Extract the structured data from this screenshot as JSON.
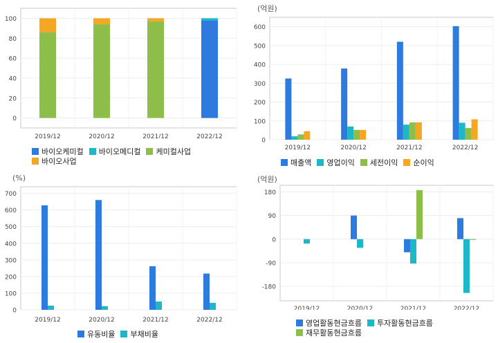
{
  "chart_data": [
    {
      "type": "bar",
      "stacked": true,
      "unit": "",
      "categories": [
        "2019/12",
        "2020/12",
        "2021/12",
        "2022/12"
      ],
      "series": [
        {
          "name": "바이오케미컬",
          "color": "#2E7BE0",
          "values": [
            0,
            0,
            0,
            98
          ]
        },
        {
          "name": "바이오메디컬",
          "color": "#1CB8C8",
          "values": [
            0,
            0,
            0,
            2
          ]
        },
        {
          "name": "케미컬사업",
          "color": "#8DBE4A",
          "values": [
            86,
            94,
            97,
            0
          ]
        },
        {
          "name": "바이오사업",
          "color": "#F5A623",
          "values": [
            14,
            6,
            3,
            0
          ]
        }
      ],
      "ylim": [
        -10,
        110
      ],
      "yticks": [
        0,
        20,
        40,
        60,
        80,
        100
      ]
    },
    {
      "type": "bar",
      "unit": "(억원)",
      "categories": [
        "2019/12",
        "2020/12",
        "2021/12",
        "2022/12"
      ],
      "series": [
        {
          "name": "매출액",
          "color": "#2E7BE0",
          "values": [
            325,
            378,
            520,
            603
          ]
        },
        {
          "name": "영업이익",
          "color": "#1CB8C8",
          "values": [
            18,
            70,
            80,
            90
          ]
        },
        {
          "name": "세전이익",
          "color": "#8DBE4A",
          "values": [
            28,
            52,
            92,
            62
          ]
        },
        {
          "name": "순이익",
          "color": "#F5A623",
          "values": [
            45,
            52,
            92,
            108
          ]
        }
      ],
      "ylim": [
        0,
        650
      ],
      "yticks": [
        0,
        100,
        200,
        300,
        400,
        500,
        600
      ]
    },
    {
      "type": "bar",
      "unit": "(%)",
      "categories": [
        "2019/12",
        "2020/12",
        "2021/12",
        "2022/12"
      ],
      "series": [
        {
          "name": "유동비율",
          "color": "#2E7BE0",
          "values": [
            628,
            660,
            262,
            218
          ]
        },
        {
          "name": "부채비율",
          "color": "#1CB8C8",
          "values": [
            25,
            22,
            50,
            42
          ]
        }
      ],
      "ylim": [
        0,
        740
      ],
      "yticks": [
        0,
        100,
        200,
        300,
        400,
        500,
        600,
        700
      ]
    },
    {
      "type": "bar",
      "unit": "(억원)",
      "categories": [
        "2019/12",
        "2020/12",
        "2021/12",
        "2022/12"
      ],
      "series": [
        {
          "name": "영업활동현금흐름",
          "color": "#2E7BE0",
          "values": [
            0,
            90,
            -50,
            80
          ]
        },
        {
          "name": "투자활동현금흐름",
          "color": "#1CB8C8",
          "values": [
            -17,
            -33,
            -93,
            -205
          ]
        },
        {
          "name": "재무활동현금흐름",
          "color": "#8DBE4A",
          "values": [
            0,
            0,
            187,
            -3
          ]
        }
      ],
      "ylim": [
        -235,
        205
      ],
      "yticks": [
        -180,
        -90,
        0,
        90,
        180
      ]
    }
  ]
}
